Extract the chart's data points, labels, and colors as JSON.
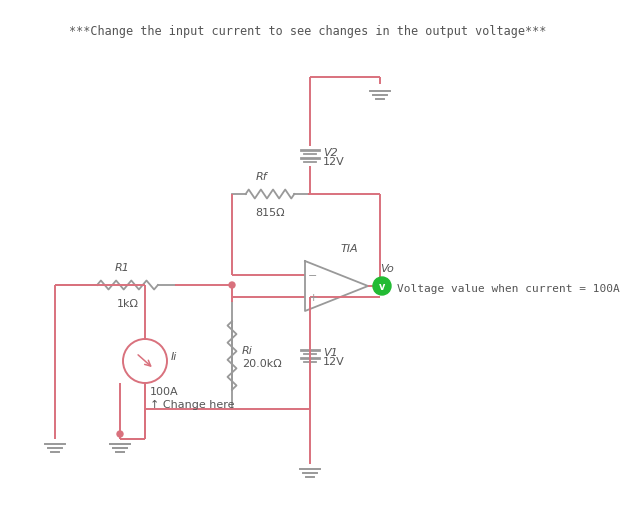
{
  "bg_color": "#ffffff",
  "wire_color": "#d9717d",
  "component_color": "#999999",
  "text_color": "#555555",
  "title_text": "***Change the input current to see changes in the output voltage***",
  "title_fontsize": 8.5,
  "small_fontsize": 8.0,
  "annotation_text": "Voltage value when current = 100A",
  "R1_label": "R1",
  "R1_value": "1kΩ",
  "Rf_label": "Rf",
  "Rf_value": "815Ω",
  "Ri_label": "Ri",
  "Ri_value": "20.0kΩ",
  "Ii_label": "Ii",
  "Ii_value": "100A",
  "Ii_change": "↑ Change here",
  "V1_label": "V1",
  "V1_value": "12V",
  "V2_label": "V2",
  "V2_value": "12V",
  "Vo_label": "Vo",
  "TIA_label": "TIA",
  "voltmeter_color": "#22bb33"
}
